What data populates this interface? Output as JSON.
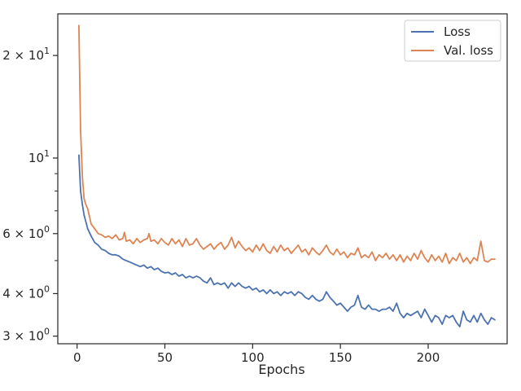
{
  "chart_data": {
    "type": "line",
    "title": "",
    "xlabel": "Epochs",
    "ylabel": "",
    "yscale": "log",
    "xlim": [
      -11,
      245
    ],
    "ylim": [
      2.85,
      26.5
    ],
    "x_ticks": [
      {
        "value": 0,
        "label": "0"
      },
      {
        "value": 50,
        "label": "50"
      },
      {
        "value": 100,
        "label": "100"
      },
      {
        "value": 150,
        "label": "150"
      },
      {
        "value": 200,
        "label": "200"
      }
    ],
    "y_major_ticks": [
      {
        "value": 3,
        "base": "3 × 10",
        "exp": "0"
      },
      {
        "value": 4,
        "base": "4 × 10",
        "exp": "0"
      },
      {
        "value": 6,
        "base": "6 × 10",
        "exp": "0"
      },
      {
        "value": 10,
        "base": "10",
        "exp": "1"
      },
      {
        "value": 20,
        "base": "2 × 10",
        "exp": "1"
      }
    ],
    "y_minor_ticks": [
      5,
      7,
      8,
      9
    ],
    "grid": false,
    "legend_position": "top-right",
    "series": [
      {
        "name": "Loss",
        "color": "#4c72b0",
        "points": [
          [
            1,
            10.2
          ],
          [
            2,
            8.0
          ],
          [
            3,
            7.3
          ],
          [
            4,
            6.8
          ],
          [
            5,
            6.5
          ],
          [
            6,
            6.2
          ],
          [
            8,
            5.9
          ],
          [
            10,
            5.65
          ],
          [
            12,
            5.55
          ],
          [
            14,
            5.4
          ],
          [
            16,
            5.35
          ],
          [
            18,
            5.25
          ],
          [
            20,
            5.2
          ],
          [
            22,
            5.2
          ],
          [
            24,
            5.15
          ],
          [
            26,
            5.05
          ],
          [
            28,
            5.0
          ],
          [
            30,
            4.95
          ],
          [
            32,
            4.9
          ],
          [
            34,
            4.85
          ],
          [
            36,
            4.8
          ],
          [
            38,
            4.85
          ],
          [
            40,
            4.75
          ],
          [
            42,
            4.8
          ],
          [
            44,
            4.7
          ],
          [
            46,
            4.75
          ],
          [
            48,
            4.65
          ],
          [
            50,
            4.6
          ],
          [
            52,
            4.62
          ],
          [
            54,
            4.55
          ],
          [
            56,
            4.6
          ],
          [
            58,
            4.5
          ],
          [
            60,
            4.55
          ],
          [
            62,
            4.45
          ],
          [
            64,
            4.5
          ],
          [
            66,
            4.45
          ],
          [
            68,
            4.5
          ],
          [
            70,
            4.45
          ],
          [
            72,
            4.35
          ],
          [
            74,
            4.3
          ],
          [
            76,
            4.45
          ],
          [
            78,
            4.25
          ],
          [
            80,
            4.3
          ],
          [
            82,
            4.25
          ],
          [
            84,
            4.3
          ],
          [
            86,
            4.15
          ],
          [
            88,
            4.3
          ],
          [
            90,
            4.2
          ],
          [
            92,
            4.3
          ],
          [
            94,
            4.2
          ],
          [
            96,
            4.15
          ],
          [
            98,
            4.2
          ],
          [
            100,
            4.1
          ],
          [
            102,
            4.15
          ],
          [
            104,
            4.05
          ],
          [
            106,
            4.1
          ],
          [
            108,
            4.0
          ],
          [
            110,
            4.1
          ],
          [
            112,
            4.0
          ],
          [
            114,
            4.05
          ],
          [
            116,
            3.95
          ],
          [
            118,
            4.05
          ],
          [
            120,
            4.0
          ],
          [
            122,
            4.05
          ],
          [
            124,
            3.95
          ],
          [
            126,
            4.05
          ],
          [
            128,
            4.0
          ],
          [
            130,
            3.9
          ],
          [
            132,
            3.85
          ],
          [
            134,
            3.95
          ],
          [
            136,
            3.85
          ],
          [
            138,
            3.8
          ],
          [
            140,
            3.85
          ],
          [
            142,
            4.05
          ],
          [
            144,
            3.9
          ],
          [
            146,
            3.8
          ],
          [
            148,
            3.7
          ],
          [
            150,
            3.75
          ],
          [
            152,
            3.65
          ],
          [
            154,
            3.55
          ],
          [
            156,
            3.65
          ],
          [
            158,
            3.7
          ],
          [
            160,
            3.95
          ],
          [
            162,
            3.65
          ],
          [
            164,
            3.6
          ],
          [
            166,
            3.7
          ],
          [
            168,
            3.6
          ],
          [
            170,
            3.6
          ],
          [
            172,
            3.55
          ],
          [
            174,
            3.6
          ],
          [
            176,
            3.6
          ],
          [
            178,
            3.65
          ],
          [
            180,
            3.55
          ],
          [
            182,
            3.75
          ],
          [
            184,
            3.5
          ],
          [
            186,
            3.4
          ],
          [
            188,
            3.5
          ],
          [
            190,
            3.45
          ],
          [
            192,
            3.5
          ],
          [
            194,
            3.55
          ],
          [
            196,
            3.4
          ],
          [
            198,
            3.6
          ],
          [
            200,
            3.45
          ],
          [
            202,
            3.3
          ],
          [
            204,
            3.45
          ],
          [
            206,
            3.4
          ],
          [
            208,
            3.25
          ],
          [
            210,
            3.45
          ],
          [
            212,
            3.4
          ],
          [
            214,
            3.45
          ],
          [
            216,
            3.3
          ],
          [
            218,
            3.2
          ],
          [
            220,
            3.55
          ],
          [
            222,
            3.35
          ],
          [
            224,
            3.3
          ],
          [
            226,
            3.45
          ],
          [
            228,
            3.3
          ],
          [
            230,
            3.5
          ],
          [
            232,
            3.35
          ],
          [
            234,
            3.25
          ],
          [
            236,
            3.4
          ],
          [
            238,
            3.35
          ]
        ]
      },
      {
        "name": "Val. loss",
        "color": "#dd8452",
        "points": [
          [
            1,
            24.5
          ],
          [
            2,
            12.0
          ],
          [
            3,
            8.8
          ],
          [
            4,
            7.6
          ],
          [
            5,
            7.3
          ],
          [
            6,
            7.1
          ],
          [
            8,
            6.4
          ],
          [
            10,
            6.2
          ],
          [
            12,
            6.0
          ],
          [
            14,
            5.95
          ],
          [
            16,
            5.85
          ],
          [
            18,
            5.9
          ],
          [
            20,
            5.8
          ],
          [
            22,
            5.95
          ],
          [
            24,
            5.75
          ],
          [
            26,
            5.8
          ],
          [
            27,
            6.05
          ],
          [
            28,
            5.7
          ],
          [
            30,
            5.75
          ],
          [
            32,
            5.6
          ],
          [
            34,
            5.8
          ],
          [
            36,
            5.65
          ],
          [
            38,
            5.75
          ],
          [
            40,
            5.8
          ],
          [
            41,
            6.0
          ],
          [
            42,
            5.7
          ],
          [
            44,
            5.75
          ],
          [
            46,
            5.6
          ],
          [
            48,
            5.8
          ],
          [
            50,
            5.65
          ],
          [
            52,
            5.55
          ],
          [
            54,
            5.8
          ],
          [
            56,
            5.6
          ],
          [
            58,
            5.75
          ],
          [
            60,
            5.5
          ],
          [
            62,
            5.8
          ],
          [
            64,
            5.55
          ],
          [
            66,
            5.6
          ],
          [
            68,
            5.8
          ],
          [
            70,
            5.55
          ],
          [
            72,
            5.4
          ],
          [
            74,
            5.5
          ],
          [
            76,
            5.6
          ],
          [
            78,
            5.4
          ],
          [
            80,
            5.55
          ],
          [
            82,
            5.65
          ],
          [
            84,
            5.4
          ],
          [
            86,
            5.55
          ],
          [
            88,
            5.85
          ],
          [
            90,
            5.45
          ],
          [
            92,
            5.7
          ],
          [
            94,
            5.5
          ],
          [
            96,
            5.35
          ],
          [
            98,
            5.45
          ],
          [
            100,
            5.3
          ],
          [
            102,
            5.55
          ],
          [
            104,
            5.35
          ],
          [
            106,
            5.6
          ],
          [
            108,
            5.35
          ],
          [
            110,
            5.25
          ],
          [
            112,
            5.5
          ],
          [
            114,
            5.3
          ],
          [
            116,
            5.55
          ],
          [
            118,
            5.35
          ],
          [
            120,
            5.45
          ],
          [
            122,
            5.25
          ],
          [
            124,
            5.4
          ],
          [
            126,
            5.55
          ],
          [
            128,
            5.3
          ],
          [
            130,
            5.4
          ],
          [
            132,
            5.2
          ],
          [
            134,
            5.45
          ],
          [
            136,
            5.3
          ],
          [
            138,
            5.2
          ],
          [
            140,
            5.35
          ],
          [
            142,
            5.55
          ],
          [
            144,
            5.3
          ],
          [
            146,
            5.2
          ],
          [
            148,
            5.4
          ],
          [
            150,
            5.2
          ],
          [
            152,
            5.3
          ],
          [
            154,
            5.1
          ],
          [
            156,
            5.25
          ],
          [
            158,
            5.2
          ],
          [
            160,
            5.45
          ],
          [
            162,
            5.1
          ],
          [
            164,
            5.2
          ],
          [
            166,
            5.1
          ],
          [
            168,
            5.3
          ],
          [
            170,
            5.0
          ],
          [
            172,
            5.2
          ],
          [
            174,
            5.1
          ],
          [
            176,
            5.25
          ],
          [
            178,
            5.05
          ],
          [
            180,
            5.2
          ],
          [
            182,
            5.0
          ],
          [
            184,
            5.2
          ],
          [
            186,
            4.95
          ],
          [
            188,
            5.15
          ],
          [
            190,
            5.0
          ],
          [
            192,
            5.25
          ],
          [
            194,
            5.05
          ],
          [
            196,
            5.35
          ],
          [
            198,
            5.1
          ],
          [
            200,
            4.95
          ],
          [
            202,
            5.2
          ],
          [
            204,
            5.0
          ],
          [
            206,
            5.15
          ],
          [
            208,
            4.95
          ],
          [
            210,
            5.25
          ],
          [
            212,
            4.9
          ],
          [
            214,
            5.1
          ],
          [
            216,
            5.0
          ],
          [
            218,
            5.25
          ],
          [
            220,
            4.95
          ],
          [
            222,
            5.1
          ],
          [
            224,
            4.9
          ],
          [
            226,
            5.1
          ],
          [
            228,
            5.0
          ],
          [
            230,
            5.7
          ],
          [
            232,
            5.0
          ],
          [
            234,
            4.95
          ],
          [
            236,
            5.05
          ],
          [
            238,
            5.05
          ]
        ]
      }
    ]
  }
}
